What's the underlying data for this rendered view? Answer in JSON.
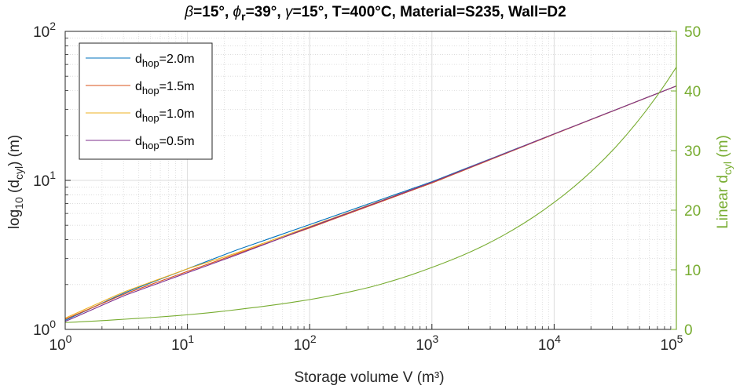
{
  "chart_data": {
    "type": "line",
    "title_parts": {
      "beta_sym": "β",
      "beta_rest": "=15°, ",
      "phi_sym": "ϕ",
      "phi_sub": "r",
      "phi_rest": "=39°, ",
      "gamma_sym": "γ",
      "gamma_rest": "=15°, T=400°C, Material=S235, Wall=D2"
    },
    "xlabel": "Storage volume V (m³)",
    "ylabel_left": {
      "main": "log",
      "sub1": "10",
      "mid": " (d",
      "sub2": "cyl",
      "end": ") (m)"
    },
    "ylabel_right": {
      "main": "Linear d",
      "sub": "cyl",
      "end": " (m)"
    },
    "x_scale": "log",
    "xlim": [
      1,
      100000
    ],
    "ylim_left": [
      1,
      100
    ],
    "ylim_left_scale": "log",
    "ylim_right": [
      0,
      50
    ],
    "grid": true,
    "minor_grid": true,
    "legend_placement": "top-left",
    "x_ticks": [
      {
        "base": "10",
        "exp": "0"
      },
      {
        "base": "10",
        "exp": "1"
      },
      {
        "base": "10",
        "exp": "2"
      },
      {
        "base": "10",
        "exp": "3"
      },
      {
        "base": "10",
        "exp": "4"
      },
      {
        "base": "10",
        "exp": "5"
      }
    ],
    "y_left_ticks": [
      {
        "base": "10",
        "exp": "0"
      },
      {
        "base": "10",
        "exp": "1"
      },
      {
        "base": "10",
        "exp": "2"
      }
    ],
    "y_right_ticks": [
      "0",
      "10",
      "20",
      "30",
      "40",
      "50"
    ],
    "series": [
      {
        "name_main": "d",
        "name_sub": "hop",
        "name_rest": "=2.0m",
        "color": "#0072BD",
        "axis": "left",
        "x": [
          1,
          3,
          10,
          25,
          100,
          1000,
          10000,
          100000
        ],
        "y": [
          1.15,
          1.75,
          2.55,
          3.4,
          5.05,
          9.8,
          20.5,
          43
        ]
      },
      {
        "name_main": "d",
        "name_sub": "hop",
        "name_rest": "=1.5m",
        "color": "#D95319",
        "axis": "left",
        "x": [
          1,
          3,
          10,
          25,
          100,
          1000,
          10000,
          100000
        ],
        "y": [
          1.17,
          1.72,
          2.45,
          3.2,
          4.8,
          9.6,
          20.4,
          43
        ]
      },
      {
        "name_main": "d",
        "name_sub": "hop",
        "name_rest": "=1.0m",
        "color": "#EDB120",
        "axis": "left",
        "x": [
          1,
          3,
          10,
          25,
          100,
          1000,
          10000,
          100000
        ],
        "y": [
          1.19,
          1.78,
          2.55,
          3.25,
          4.9,
          9.7,
          20.5,
          43
        ]
      },
      {
        "name_main": "d",
        "name_sub": "hop",
        "name_rest": "=0.5m",
        "color": "#7E2F8E",
        "axis": "left",
        "x": [
          1,
          3,
          10,
          25,
          100,
          1000,
          10000,
          100000
        ],
        "y": [
          1.13,
          1.68,
          2.4,
          3.15,
          4.85,
          9.7,
          20.5,
          43
        ]
      },
      {
        "color": "#77AC30",
        "axis": "right",
        "x": [
          1,
          3,
          10,
          30,
          100,
          300,
          1000,
          3000,
          10000,
          30000,
          100000
        ],
        "y": [
          1.15,
          1.7,
          2.45,
          3.5,
          5.0,
          7.0,
          10.4,
          14.6,
          21.3,
          30.0,
          44.0
        ]
      }
    ]
  }
}
